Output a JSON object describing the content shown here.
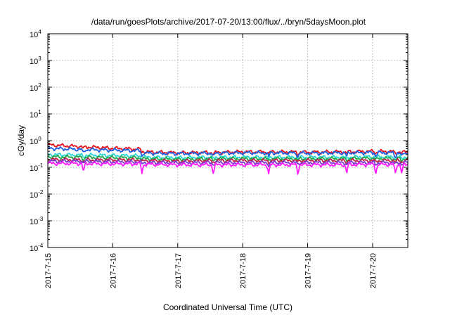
{
  "chart_data": {
    "type": "line",
    "title": "/data/run/goesPlots/archive/2017-07-20/13:00/flux/../bryn/5daysMoon.plot",
    "xlabel": "Coordinated Universal Time (UTC)",
    "ylabel": "cGy/day",
    "yscale": "log",
    "ylim": [
      "1e-4",
      "1e4"
    ],
    "y_tick_labels": [
      {
        "base": "10",
        "exp": "-4"
      },
      {
        "base": "10",
        "exp": "-3"
      },
      {
        "base": "10",
        "exp": "-2"
      },
      {
        "base": "10",
        "exp": "-1"
      },
      {
        "base": "10",
        "exp": "0"
      },
      {
        "base": "10",
        "exp": "1"
      },
      {
        "base": "10",
        "exp": "2"
      },
      {
        "base": "10",
        "exp": "3"
      },
      {
        "base": "10",
        "exp": "4"
      }
    ],
    "x_range_days": [
      "2017-07-15",
      "2017-07-20 13:00"
    ],
    "x_tick_labels": [
      "2017-7-15",
      "2017-7-16",
      "2017-7-17",
      "2017-7-18",
      "2017-7-19",
      "2017-7-20"
    ],
    "grid": true,
    "x": [
      "2017-07-15 00:00",
      "2017-07-15 12:00",
      "2017-07-16 00:00",
      "2017-07-16 10:00",
      "2017-07-16 12:00",
      "2017-07-17 00:00",
      "2017-07-17 12:00",
      "2017-07-18 00:00",
      "2017-07-18 12:00",
      "2017-07-19 00:00",
      "2017-07-19 12:00",
      "2017-07-20 00:00",
      "2017-07-20 13:00"
    ],
    "series": [
      {
        "color": "#e8141c",
        "values": [
          0.7,
          0.6,
          0.52,
          0.48,
          0.38,
          0.35,
          0.36,
          0.38,
          0.38,
          0.37,
          0.38,
          0.4,
          0.38
        ]
      },
      {
        "color": "#1f5fe0",
        "values": [
          0.52,
          0.47,
          0.44,
          0.42,
          0.34,
          0.33,
          0.34,
          0.35,
          0.35,
          0.34,
          0.35,
          0.36,
          0.34
        ]
      },
      {
        "color": "#2bd7d7",
        "values": [
          0.3,
          0.29,
          0.28,
          0.27,
          0.24,
          0.23,
          0.24,
          0.24,
          0.24,
          0.24,
          0.24,
          0.25,
          0.24
        ]
      },
      {
        "color": "#22a84a",
        "values": [
          0.25,
          0.24,
          0.23,
          0.23,
          0.21,
          0.2,
          0.21,
          0.21,
          0.21,
          0.21,
          0.21,
          0.22,
          0.21
        ]
      },
      {
        "color": "#c0204a",
        "values": [
          0.2,
          0.19,
          0.19,
          0.19,
          0.18,
          0.17,
          0.18,
          0.18,
          0.18,
          0.18,
          0.18,
          0.18,
          0.18
        ]
      },
      {
        "color": "#7a3dcf",
        "values": [
          0.17,
          0.17,
          0.16,
          0.16,
          0.15,
          0.15,
          0.15,
          0.15,
          0.15,
          0.15,
          0.15,
          0.15,
          0.15
        ]
      },
      {
        "color": "#ff1aff",
        "values": [
          0.14,
          0.14,
          0.135,
          0.135,
          0.13,
          0.125,
          0.125,
          0.125,
          0.125,
          0.125,
          0.125,
          0.13,
          0.125
        ]
      }
    ]
  }
}
